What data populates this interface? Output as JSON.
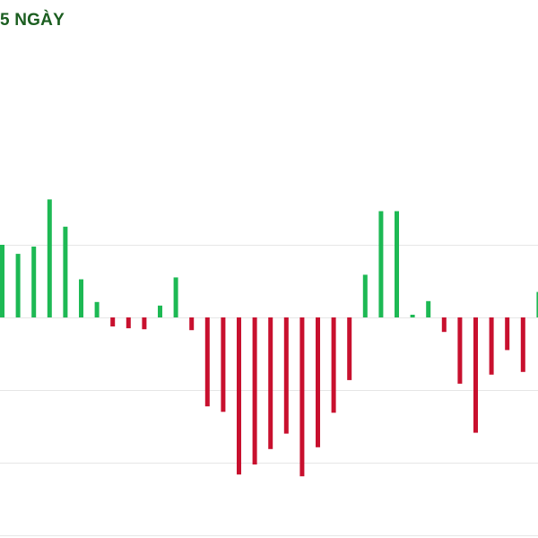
{
  "header": {
    "title": "5 NGÀY"
  },
  "colors": {
    "positive": "#1db954",
    "negative": "#c8102e",
    "grid": "#e6e6e6",
    "title": "#1b5e20"
  },
  "chart_data": {
    "type": "bar",
    "title": "5 NGÀY",
    "xlabel": "",
    "ylabel": "",
    "grid": true,
    "legend": "none",
    "ylim": [
      -240,
      160
    ],
    "gridlines": [
      80,
      0,
      -80,
      -160,
      -240
    ],
    "values": [
      80,
      70,
      78,
      130,
      100,
      42,
      17,
      -10,
      -12,
      -13,
      13,
      44,
      -14,
      -98,
      -104,
      -173,
      -162,
      -145,
      -128,
      -175,
      -143,
      -105,
      -69,
      47,
      117,
      117,
      3,
      18,
      -16,
      -73,
      -127,
      -63,
      -36,
      -60,
      28
    ]
  }
}
